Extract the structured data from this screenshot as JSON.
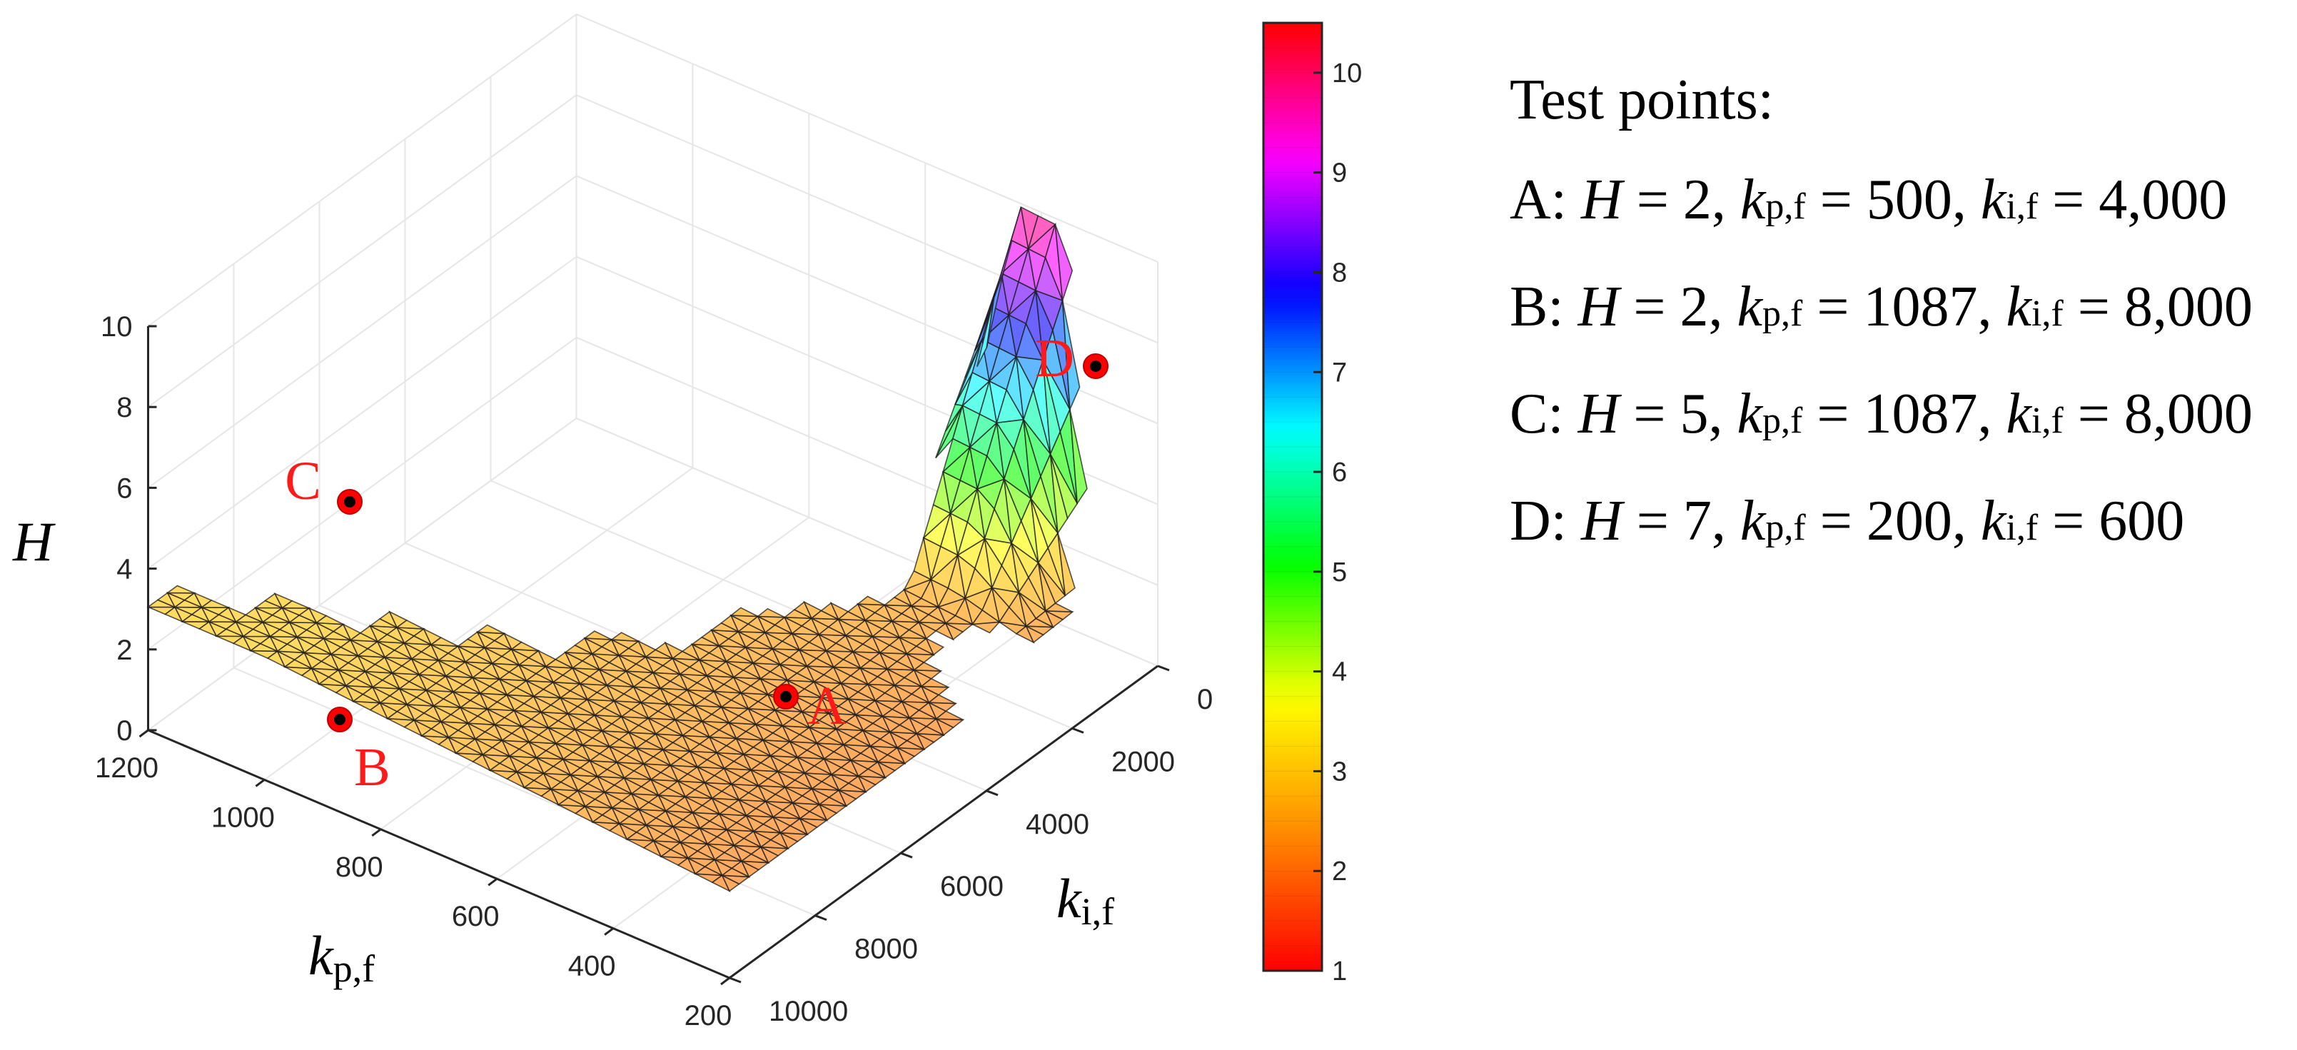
{
  "chart_data": {
    "type": "surface3d",
    "title": "",
    "xlabel": "k_p,f",
    "xlabel_main": "k",
    "xlabel_sub": "p,f",
    "ylabel": "k_i,f",
    "ylabel_main": "k",
    "ylabel_sub": "i,f",
    "zlabel": "H",
    "xlim": [
      200,
      1200
    ],
    "ylim": [
      0,
      10000
    ],
    "zlim": [
      0,
      10
    ],
    "x_ticks": [
      "200",
      "400",
      "600",
      "800",
      "1000",
      "1200"
    ],
    "x_tick_values": [
      200,
      400,
      600,
      800,
      1000,
      1200
    ],
    "y_ticks": [
      "0",
      "2000",
      "4000",
      "6000",
      "8000",
      "10000"
    ],
    "y_tick_values": [
      0,
      2000,
      4000,
      6000,
      8000,
      10000
    ],
    "z_ticks": [
      "0",
      "2",
      "4",
      "6",
      "8",
      "10"
    ],
    "z_tick_values": [
      0,
      2,
      4,
      6,
      8,
      10
    ],
    "colorbar": {
      "range": [
        1,
        10.5
      ],
      "ticks": [
        "1",
        "2",
        "3",
        "4",
        "5",
        "6",
        "7",
        "8",
        "9",
        "10"
      ],
      "tick_values": [
        1,
        2,
        3,
        4,
        5,
        6,
        7,
        8,
        9,
        10
      ],
      "colormap": "hsv",
      "colors": [
        "#ff0000",
        "#ff8800",
        "#ffff00",
        "#00ff00",
        "#00ffff",
        "#0000ff",
        "#ff00ff",
        "#ff0000"
      ]
    },
    "surface_description": "Triangulated stability boundary: H approx. 2-3 over most of the domain, rising steeply to about 10 near k_i,f = 0 and low k_p,f",
    "test_points": [
      {
        "name": "A",
        "H": 2,
        "kpf": 500,
        "kif": 4000
      },
      {
        "name": "B",
        "H": 2,
        "kpf": 1087,
        "kif": 8000
      },
      {
        "name": "C",
        "H": 5,
        "kpf": 1087,
        "kif": 8000
      },
      {
        "name": "D",
        "H": 7,
        "kpf": 200,
        "kif": 600
      }
    ],
    "point_color": "#ff0000"
  },
  "legend": {
    "title": "Test points:",
    "rows": [
      {
        "label": "A: ",
        "h": "= 2, ",
        "kp": "= 500, ",
        "ki": "= 4,000"
      },
      {
        "label": "B: ",
        "h": "= 2, ",
        "kp": "= 1087, ",
        "ki": "= 8,000"
      },
      {
        "label": "C: ",
        "h": "= 5, ",
        "kp": "= 1087, ",
        "ki": "= 8,000"
      },
      {
        "label": "D: ",
        "h": "= 7, ",
        "kp": "= 200, ",
        "ki": "= 600"
      }
    ],
    "sym_h": "H",
    "sym_k": "k",
    "sub_p": "p,f",
    "sub_i": "i,f"
  }
}
